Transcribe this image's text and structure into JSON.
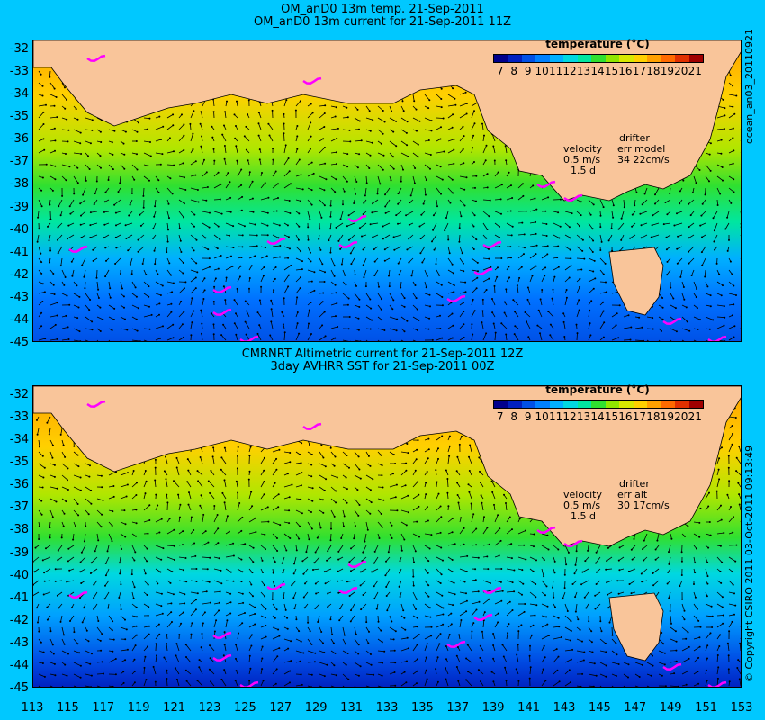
{
  "top": {
    "title_line1": "OM_anD0 13m temp. 21-Sep-2011",
    "title_line2": "OM_anD0 13m current for 21-Sep-2011 11Z",
    "velocity_label": "velocity",
    "velocity_value": "0.5 m/s",
    "velocity_scale": "1.5 d",
    "drifter_label": "drifter",
    "err_label": "err model",
    "err_value": "34 22cm/s",
    "side_text": "ocean_an03_20110921"
  },
  "bottom": {
    "title_line1": "CMRNRT Altimetric current for 21-Sep-2011 12Z",
    "title_line2": "3day AVHRR SST for 21-Sep-2011 00Z",
    "velocity_label": "velocity",
    "velocity_value": "0.5 m/s",
    "velocity_scale": "1.5 d",
    "drifter_label": "drifter",
    "err_label": "err alt",
    "err_value": "30 17cm/s",
    "side_text": "© Copyright CSIRO 2011  03-Oct-2011 09:13:49"
  },
  "colorbar": {
    "title": "temperature (°C)",
    "ticks": [
      "7",
      "8",
      "9",
      "10",
      "11",
      "12",
      "13",
      "14",
      "15",
      "16",
      "17",
      "18",
      "19",
      "20",
      "21"
    ],
    "colors": [
      "#00008c",
      "#0020c0",
      "#0050e6",
      "#0080ff",
      "#00b0ff",
      "#00d8e0",
      "#00e6a0",
      "#30e030",
      "#90e600",
      "#d8e800",
      "#ffd000",
      "#ffa000",
      "#ff6a00",
      "#e03000",
      "#a00000"
    ]
  },
  "axes": {
    "y_ticks": [
      "-32",
      "-33",
      "-34",
      "-35",
      "-36",
      "-37",
      "-38",
      "-39",
      "-40",
      "-41",
      "-42",
      "-43",
      "-44",
      "-45"
    ],
    "x_ticks": [
      "113",
      "115",
      "117",
      "119",
      "121",
      "123",
      "125",
      "127",
      "129",
      "131",
      "133",
      "135",
      "137",
      "139",
      "141",
      "143",
      "145",
      "147",
      "149",
      "151",
      "153"
    ],
    "lon_range": [
      113,
      153
    ],
    "lat_range": [
      -45,
      -31.6
    ]
  },
  "colors": {
    "land": "#f9c59a",
    "background": "#00c8ff",
    "drifter": "#ff00ff",
    "coast_contour": "#40c8d8"
  }
}
